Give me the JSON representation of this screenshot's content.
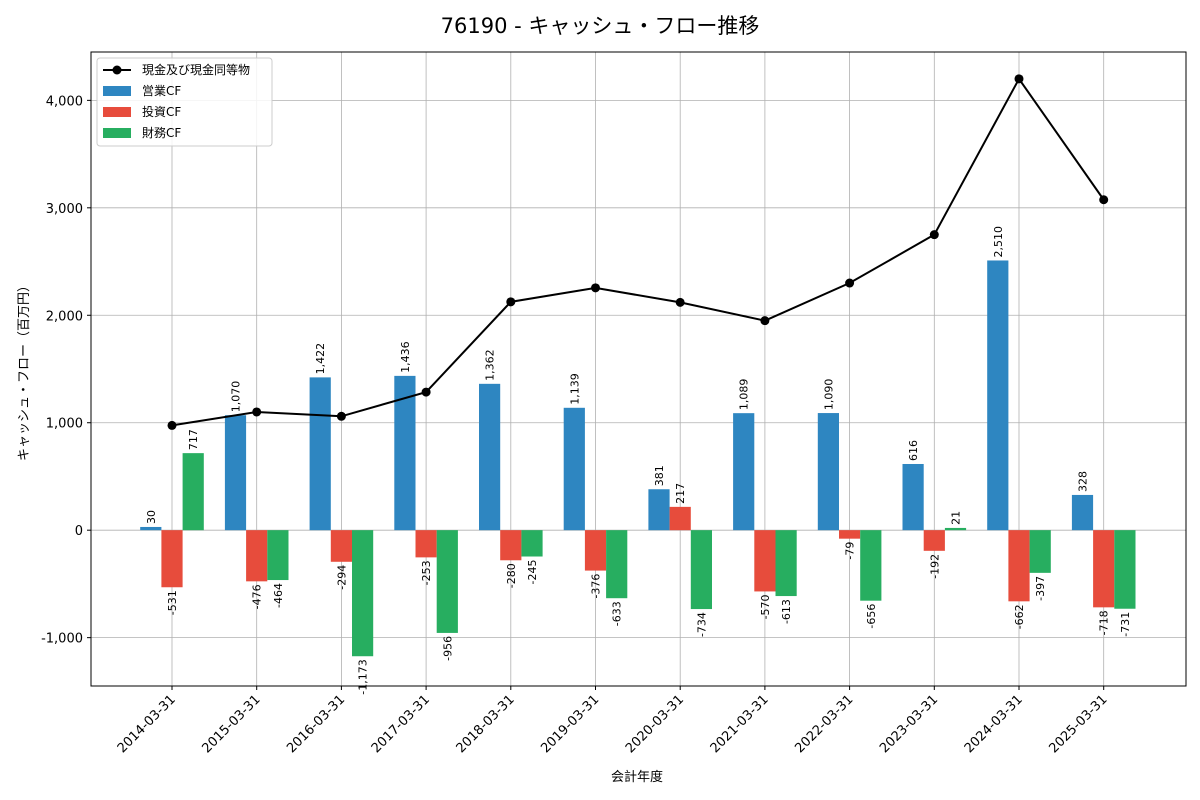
{
  "chart_data": {
    "type": "bar",
    "title": "76190 - キャッシュ・フロー推移",
    "xlabel": "会計年度",
    "ylabel": "キャッシュ・フロー（百万円）",
    "categories": [
      "2014-03-31",
      "2015-03-31",
      "2016-03-31",
      "2017-03-31",
      "2018-03-31",
      "2019-03-31",
      "2020-03-31",
      "2021-03-31",
      "2022-03-31",
      "2023-03-31",
      "2024-03-31",
      "2025-03-31"
    ],
    "ylim": [
      -1450,
      4450
    ],
    "yticks": [
      -1000,
      0,
      1000,
      2000,
      3000,
      4000
    ],
    "ytick_labels": [
      "-1,000",
      "0",
      "1,000",
      "2,000",
      "3,000",
      "4,000"
    ],
    "grid": true,
    "legend_position": "top-left",
    "series": [
      {
        "name": "営業CF",
        "kind": "bar",
        "color": "#2e86c1",
        "values": [
          30,
          1070,
          1422,
          1436,
          1362,
          1139,
          381,
          1089,
          1090,
          616,
          2510,
          328
        ],
        "labels": [
          "30",
          "1,070",
          "1,422",
          "1,436",
          "1,362",
          "1,139",
          "381",
          "1,089",
          "1,090",
          "616",
          "2,510",
          "328"
        ]
      },
      {
        "name": "投資CF",
        "kind": "bar",
        "color": "#e74c3c",
        "values": [
          -531,
          -476,
          -294,
          -253,
          -280,
          -376,
          217,
          -570,
          -79,
          -192,
          -662,
          -718
        ],
        "labels": [
          "-531",
          "-476",
          "-294",
          "-253",
          "-280",
          "-376",
          "217",
          "-570",
          "-79",
          "-192",
          "-662",
          "-718"
        ]
      },
      {
        "name": "財務CF",
        "kind": "bar",
        "color": "#27ae60",
        "values": [
          717,
          -464,
          -1173,
          -956,
          -245,
          -633,
          -734,
          -613,
          -656,
          21,
          -397,
          -731
        ],
        "labels": [
          "717",
          "-464",
          "-1,173",
          "-956",
          "-245",
          "-633",
          "-734",
          "-613",
          "-656",
          "21",
          "-397",
          "-731"
        ]
      },
      {
        "name": "現金及び現金同等物",
        "kind": "line",
        "color": "#000000",
        "values": [
          975,
          1100,
          1060,
          1285,
          2125,
          2255,
          2120,
          1950,
          2300,
          2750,
          4200,
          3075
        ]
      }
    ]
  }
}
